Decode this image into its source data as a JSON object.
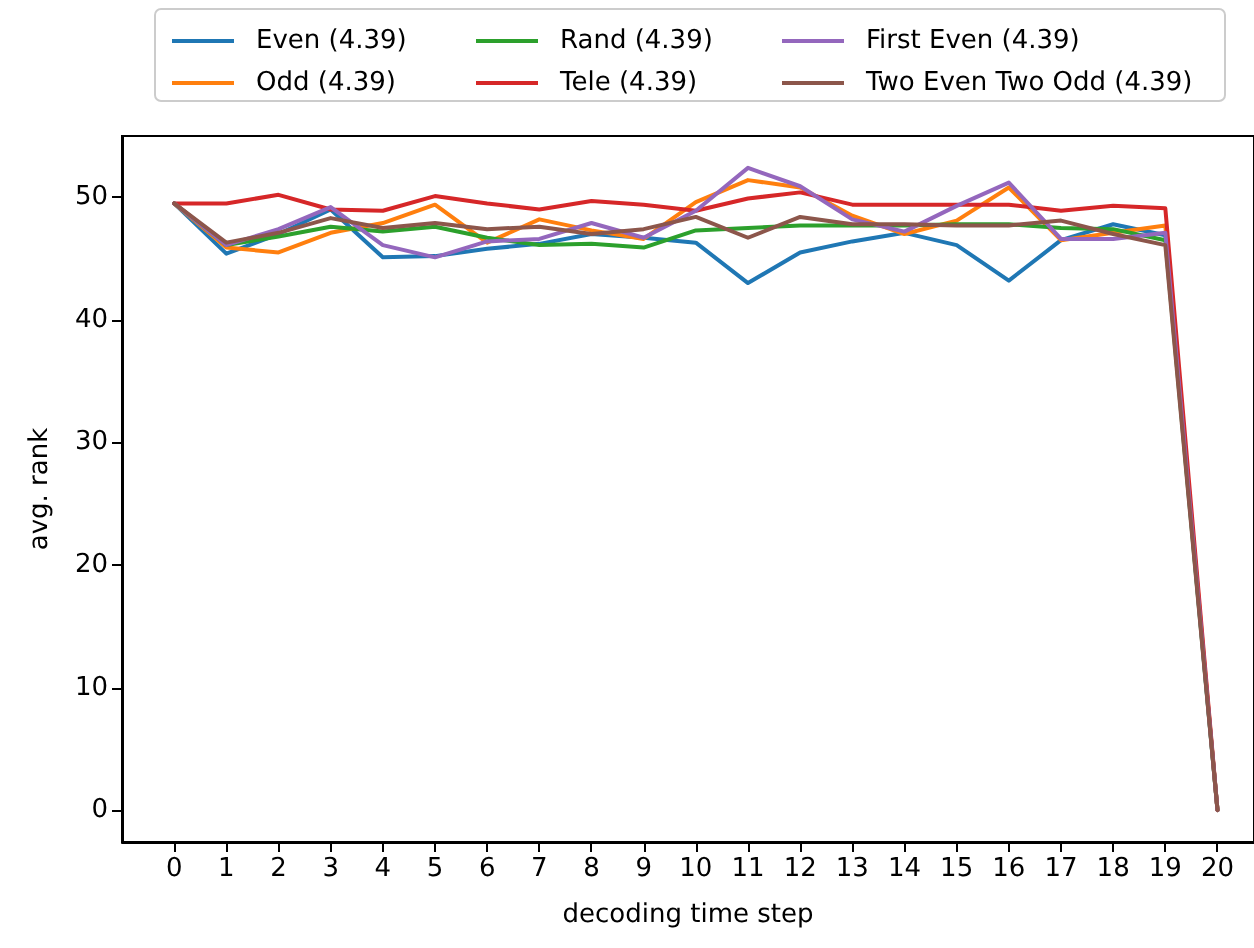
{
  "chart_data": {
    "type": "line",
    "x": [
      0,
      1,
      2,
      3,
      4,
      5,
      6,
      7,
      8,
      9,
      10,
      11,
      12,
      13,
      14,
      15,
      16,
      17,
      18,
      19,
      20
    ],
    "xlabel": "decoding time step",
    "ylabel": "avg. rank",
    "xlim": [
      -1,
      20.7
    ],
    "xticks": [
      0,
      1,
      2,
      3,
      4,
      5,
      6,
      7,
      8,
      9,
      10,
      11,
      12,
      13,
      14,
      15,
      16,
      17,
      18,
      19,
      20
    ],
    "ylim": [
      -2.6,
      55
    ],
    "yticks": [
      0,
      10,
      20,
      30,
      40,
      50
    ],
    "grid": false,
    "legend": "top",
    "series": [
      {
        "name": "Even (4.39)",
        "color": "#1f77b4",
        "values": [
          49.5,
          45.4,
          47.0,
          49.0,
          45.1,
          45.2,
          45.8,
          46.2,
          47.0,
          46.7,
          46.3,
          43.0,
          45.5,
          46.4,
          47.1,
          46.1,
          43.2,
          46.5,
          47.8,
          46.9,
          0
        ]
      },
      {
        "name": "Odd (4.39)",
        "color": "#ff7f0e",
        "values": [
          49.5,
          45.9,
          45.5,
          47.1,
          47.9,
          49.4,
          46.3,
          48.2,
          47.3,
          46.6,
          49.6,
          51.4,
          50.8,
          48.5,
          47.0,
          48.1,
          50.8,
          46.5,
          47.1,
          47.7,
          0
        ]
      },
      {
        "name": "Rand (4.39)",
        "color": "#2ca02c",
        "values": [
          49.5,
          46.1,
          46.8,
          47.6,
          47.2,
          47.6,
          46.7,
          46.1,
          46.2,
          45.9,
          47.3,
          47.5,
          47.7,
          47.7,
          47.7,
          47.8,
          47.8,
          47.5,
          47.4,
          46.5,
          0
        ]
      },
      {
        "name": "Tele (4.39)",
        "color": "#d62728",
        "values": [
          49.5,
          49.5,
          50.2,
          49.0,
          48.9,
          50.1,
          49.5,
          49.0,
          49.7,
          49.4,
          48.9,
          49.9,
          50.4,
          49.4,
          49.4,
          49.4,
          49.4,
          48.9,
          49.3,
          49.1,
          0
        ]
      },
      {
        "name": "First Even (4.39)",
        "color": "#9467bd",
        "values": [
          49.5,
          46.1,
          47.4,
          49.2,
          46.1,
          45.1,
          46.4,
          46.6,
          47.9,
          46.7,
          48.9,
          52.4,
          50.9,
          48.2,
          47.2,
          49.3,
          51.2,
          46.6,
          46.6,
          47.1,
          0
        ]
      },
      {
        "name": "Two Even Two Odd (4.39)",
        "color": "#8c564b",
        "values": [
          49.5,
          46.3,
          47.1,
          48.3,
          47.5,
          47.9,
          47.4,
          47.6,
          47.0,
          47.4,
          48.4,
          46.7,
          48.4,
          47.8,
          47.8,
          47.7,
          47.7,
          48.1,
          47.0,
          46.1,
          0
        ]
      }
    ]
  }
}
